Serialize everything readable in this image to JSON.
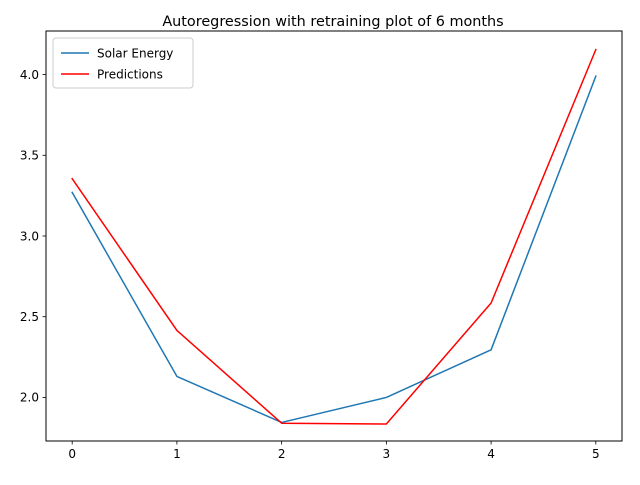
{
  "chart_data": {
    "type": "line",
    "title": "Autoregression with retraining plot of 6 months",
    "xlabel": "",
    "ylabel": "",
    "x": [
      0,
      1,
      2,
      3,
      4,
      5
    ],
    "xticks": [
      "0",
      "1",
      "2",
      "3",
      "4",
      "5"
    ],
    "yticks": [
      "2.0",
      "2.5",
      "3.0",
      "3.5",
      "4.0"
    ],
    "xlim": [
      -0.25,
      5.25
    ],
    "ylim": [
      1.73,
      4.27
    ],
    "grid": false,
    "legend_placement": "upper-left",
    "series": [
      {
        "name": "Solar Energy",
        "color": "#1f77b4",
        "values": [
          3.27,
          2.13,
          1.845,
          2.0,
          2.295,
          3.99
        ]
      },
      {
        "name": "Predictions",
        "color": "#ff0000",
        "values": [
          3.355,
          2.415,
          1.84,
          1.835,
          2.585,
          4.155
        ]
      }
    ]
  }
}
